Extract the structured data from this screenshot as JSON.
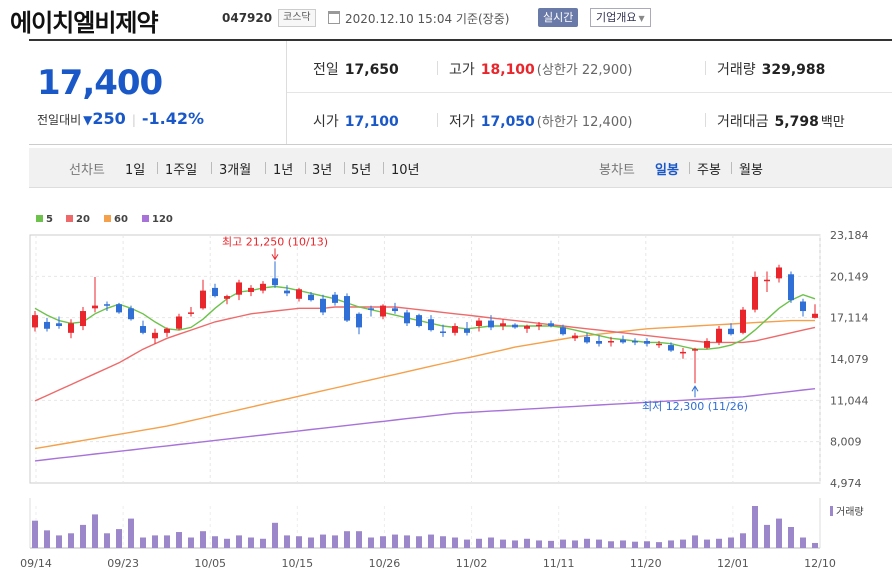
{
  "header": {
    "name": "에이치엘비제약",
    "code": "047920",
    "market": "코스닥",
    "timestamp": "2020.12.10 15:04 기준(장중)",
    "realtime_label": "실시간",
    "company_label": "기업개요"
  },
  "summary": {
    "price": "17,400",
    "change_label": "전일대비",
    "change": "250",
    "change_pct": "-1.42%",
    "stats": {
      "prev_close_label": "전일",
      "prev_close": "17,650",
      "high_label": "고가",
      "high": "18,100",
      "upper_limit": "(상한가 22,900)",
      "volume_label": "거래량",
      "volume": "329,988",
      "open_label": "시가",
      "open": "17,100",
      "low_label": "저가",
      "low": "17,050",
      "lower_limit": "(하한가 12,400)",
      "amount_label": "거래대금",
      "amount": "5,798",
      "amount_unit": "백만"
    }
  },
  "period_bar": {
    "line_label": "선차트",
    "line_periods": [
      "1일",
      "1주일",
      "3개월",
      "1년",
      "3년",
      "5년",
      "10년"
    ],
    "candle_label": "봉차트",
    "candle_periods": [
      "일봉",
      "주봉",
      "월봉"
    ],
    "active_candle": "일봉"
  },
  "colors": {
    "up": "#e8262b",
    "down": "#2f6fd6",
    "ma5": "#6cc24a",
    "ma20": "#ee6a6a",
    "ma60": "#f5a04a",
    "ma120": "#a873d9",
    "volume": "#9b87c9"
  },
  "chart_data": {
    "type": "candlestick",
    "legend": [
      "5",
      "20",
      "60",
      "120"
    ],
    "ylim": [
      4974,
      23184
    ],
    "y_ticks": [
      "23,184",
      "20,149",
      "17,114",
      "14,079",
      "11,044",
      "8,009",
      "4,974"
    ],
    "x_labels": [
      "09/14",
      "09/23",
      "10/05",
      "10/15",
      "10/26",
      "11/02",
      "11/11",
      "11/20",
      "12/01",
      "12/10"
    ],
    "annotations": {
      "high": {
        "text": "최고 21,250 (10/13)",
        "value": 21250
      },
      "low": {
        "text": "최저 12,300 (11/26)",
        "value": 12300
      }
    },
    "volume_label": "거래량",
    "candles": [
      {
        "o": 16400,
        "h": 17600,
        "l": 16100,
        "c": 17300,
        "v": 0.65
      },
      {
        "o": 16800,
        "h": 17100,
        "l": 16100,
        "c": 16300,
        "v": 0.42
      },
      {
        "o": 16700,
        "h": 17200,
        "l": 16300,
        "c": 16500,
        "v": 0.3
      },
      {
        "o": 16000,
        "h": 17000,
        "l": 15600,
        "c": 16700,
        "v": 0.35
      },
      {
        "o": 16500,
        "h": 17900,
        "l": 16200,
        "c": 17600,
        "v": 0.55
      },
      {
        "o": 17800,
        "h": 20100,
        "l": 17500,
        "c": 18000,
        "v": 0.8
      },
      {
        "o": 18100,
        "h": 18300,
        "l": 17600,
        "c": 18000,
        "v": 0.35
      },
      {
        "o": 18100,
        "h": 18200,
        "l": 17400,
        "c": 17500,
        "v": 0.45
      },
      {
        "o": 17800,
        "h": 18000,
        "l": 16900,
        "c": 17000,
        "v": 0.7
      },
      {
        "o": 16500,
        "h": 16900,
        "l": 15900,
        "c": 16000,
        "v": 0.25
      },
      {
        "o": 15600,
        "h": 16300,
        "l": 15200,
        "c": 16000,
        "v": 0.3
      },
      {
        "o": 16000,
        "h": 16400,
        "l": 15700,
        "c": 16300,
        "v": 0.3
      },
      {
        "o": 16300,
        "h": 17400,
        "l": 16200,
        "c": 17200,
        "v": 0.38
      },
      {
        "o": 17400,
        "h": 17900,
        "l": 17200,
        "c": 17500,
        "v": 0.25
      },
      {
        "o": 17800,
        "h": 19900,
        "l": 17700,
        "c": 19100,
        "v": 0.4
      },
      {
        "o": 19300,
        "h": 19600,
        "l": 18600,
        "c": 18700,
        "v": 0.28
      },
      {
        "o": 18500,
        "h": 18800,
        "l": 18100,
        "c": 18700,
        "v": 0.22
      },
      {
        "o": 18800,
        "h": 19900,
        "l": 18400,
        "c": 19700,
        "v": 0.3
      },
      {
        "o": 19000,
        "h": 19500,
        "l": 18700,
        "c": 19300,
        "v": 0.25
      },
      {
        "o": 19100,
        "h": 19800,
        "l": 18900,
        "c": 19600,
        "v": 0.22
      },
      {
        "o": 20000,
        "h": 21250,
        "l": 19300,
        "c": 19500,
        "v": 0.6
      },
      {
        "o": 19100,
        "h": 19500,
        "l": 18700,
        "c": 18900,
        "v": 0.3
      },
      {
        "o": 18500,
        "h": 19300,
        "l": 18300,
        "c": 19200,
        "v": 0.28
      },
      {
        "o": 18800,
        "h": 19000,
        "l": 18300,
        "c": 18400,
        "v": 0.25
      },
      {
        "o": 18500,
        "h": 18800,
        "l": 17300,
        "c": 17500,
        "v": 0.32
      },
      {
        "o": 18800,
        "h": 19000,
        "l": 18000,
        "c": 18200,
        "v": 0.3
      },
      {
        "o": 18700,
        "h": 18900,
        "l": 16800,
        "c": 16900,
        "v": 0.4
      },
      {
        "o": 17400,
        "h": 17500,
        "l": 15900,
        "c": 16400,
        "v": 0.4
      },
      {
        "o": 17800,
        "h": 18000,
        "l": 17200,
        "c": 17700,
        "v": 0.25
      },
      {
        "o": 17200,
        "h": 18100,
        "l": 17000,
        "c": 18000,
        "v": 0.28
      },
      {
        "o": 17800,
        "h": 18200,
        "l": 17400,
        "c": 17600,
        "v": 0.32
      },
      {
        "o": 17500,
        "h": 17700,
        "l": 16500,
        "c": 16700,
        "v": 0.3
      },
      {
        "o": 17300,
        "h": 17400,
        "l": 16400,
        "c": 16500,
        "v": 0.28
      },
      {
        "o": 17000,
        "h": 17300,
        "l": 16100,
        "c": 16200,
        "v": 0.32
      },
      {
        "o": 16100,
        "h": 16600,
        "l": 15700,
        "c": 16000,
        "v": 0.28
      },
      {
        "o": 16000,
        "h": 16700,
        "l": 15800,
        "c": 16500,
        "v": 0.25
      },
      {
        "o": 16300,
        "h": 16800,
        "l": 15800,
        "c": 16000,
        "v": 0.2
      },
      {
        "o": 16500,
        "h": 17100,
        "l": 16100,
        "c": 16900,
        "v": 0.22
      },
      {
        "o": 16900,
        "h": 17300,
        "l": 16200,
        "c": 16400,
        "v": 0.25
      },
      {
        "o": 16500,
        "h": 17000,
        "l": 16200,
        "c": 16700,
        "v": 0.2
      },
      {
        "o": 16600,
        "h": 16700,
        "l": 16300,
        "c": 16400,
        "v": 0.18
      },
      {
        "o": 16300,
        "h": 16600,
        "l": 16000,
        "c": 16500,
        "v": 0.22
      },
      {
        "o": 16500,
        "h": 16800,
        "l": 16200,
        "c": 16600,
        "v": 0.18
      },
      {
        "o": 16700,
        "h": 16900,
        "l": 16400,
        "c": 16500,
        "v": 0.17
      },
      {
        "o": 16400,
        "h": 16600,
        "l": 15800,
        "c": 15900,
        "v": 0.2
      },
      {
        "o": 15600,
        "h": 16000,
        "l": 15400,
        "c": 15800,
        "v": 0.18
      },
      {
        "o": 15700,
        "h": 16000,
        "l": 15200,
        "c": 15300,
        "v": 0.22
      },
      {
        "o": 15400,
        "h": 15800,
        "l": 15000,
        "c": 15200,
        "v": 0.2
      },
      {
        "o": 15300,
        "h": 15700,
        "l": 15000,
        "c": 15400,
        "v": 0.16
      },
      {
        "o": 15500,
        "h": 15800,
        "l": 15200,
        "c": 15300,
        "v": 0.18
      },
      {
        "o": 15400,
        "h": 15600,
        "l": 15100,
        "c": 15300,
        "v": 0.15
      },
      {
        "o": 15400,
        "h": 15600,
        "l": 15000,
        "c": 15200,
        "v": 0.16
      },
      {
        "o": 15200,
        "h": 15400,
        "l": 14900,
        "c": 15200,
        "v": 0.14
      },
      {
        "o": 15100,
        "h": 15300,
        "l": 14600,
        "c": 14700,
        "v": 0.18
      },
      {
        "o": 14500,
        "h": 14900,
        "l": 14100,
        "c": 14600,
        "v": 0.2
      },
      {
        "o": 14700,
        "h": 14900,
        "l": 12300,
        "c": 14800,
        "v": 0.3
      },
      {
        "o": 14900,
        "h": 15600,
        "l": 14800,
        "c": 15400,
        "v": 0.2
      },
      {
        "o": 15300,
        "h": 16500,
        "l": 15100,
        "c": 16300,
        "v": 0.22
      },
      {
        "o": 16300,
        "h": 16700,
        "l": 15800,
        "c": 15900,
        "v": 0.25
      },
      {
        "o": 16000,
        "h": 17900,
        "l": 15900,
        "c": 17700,
        "v": 0.35
      },
      {
        "o": 17700,
        "h": 20500,
        "l": 17500,
        "c": 20100,
        "v": 1.0
      },
      {
        "o": 19800,
        "h": 20500,
        "l": 19000,
        "c": 19900,
        "v": 0.55
      },
      {
        "o": 20000,
        "h": 21000,
        "l": 19700,
        "c": 20800,
        "v": 0.7
      },
      {
        "o": 20300,
        "h": 20500,
        "l": 18200,
        "c": 18400,
        "v": 0.5
      },
      {
        "o": 18300,
        "h": 18500,
        "l": 17200,
        "c": 17600,
        "v": 0.25
      },
      {
        "o": 17100,
        "h": 18100,
        "l": 17050,
        "c": 17400,
        "v": 0.12
      }
    ],
    "ma5": [
      17800,
      17300,
      16900,
      16700,
      16800,
      17400,
      17800,
      18100,
      17800,
      17400,
      16800,
      16300,
      16200,
      16400,
      17000,
      17800,
      18500,
      19000,
      19100,
      19300,
      19400,
      19300,
      19100,
      18900,
      18700,
      18500,
      18200,
      17900,
      17700,
      17500,
      17300,
      17100,
      16900,
      16700,
      16500,
      16400,
      16300,
      16400,
      16500,
      16500,
      16500,
      16500,
      16500,
      16500,
      16400,
      16200,
      16000,
      15800,
      15600,
      15500,
      15400,
      15300,
      15300,
      15200,
      15000,
      14800,
      14800,
      14900,
      15100,
      15500,
      16200,
      17000,
      17800,
      18400,
      18800,
      18500
    ],
    "ma20": [
      11000,
      11400,
      11800,
      12200,
      12600,
      13000,
      13400,
      13800,
      14300,
      14800,
      15200,
      15600,
      15900,
      16200,
      16500,
      16800,
      17000,
      17200,
      17400,
      17500,
      17600,
      17700,
      17800,
      17800,
      17800,
      17900,
      17900,
      17900,
      17900,
      17900,
      17900,
      17800,
      17700,
      17600,
      17500,
      17400,
      17300,
      17200,
      17100,
      17000,
      16900,
      16800,
      16700,
      16600,
      16500,
      16400,
      16300,
      16200,
      16100,
      16000,
      15900,
      15800,
      15700,
      15600,
      15500,
      15400,
      15300,
      15300,
      15300,
      15300,
      15400,
      15600,
      15800,
      16000,
      16200,
      16400
    ],
    "ma60": [
      7500,
      7650,
      7800,
      7950,
      8100,
      8250,
      8400,
      8550,
      8700,
      8850,
      9000,
      9150,
      9350,
      9550,
      9750,
      9950,
      10150,
      10350,
      10550,
      10750,
      10950,
      11150,
      11350,
      11550,
      11750,
      11950,
      12150,
      12350,
      12550,
      12750,
      12950,
      13150,
      13350,
      13550,
      13750,
      13950,
      14150,
      14350,
      14550,
      14750,
      14950,
      15100,
      15250,
      15400,
      15550,
      15700,
      15800,
      15900,
      16000,
      16100,
      16200,
      16300,
      16350,
      16400,
      16450,
      16500,
      16550,
      16600,
      16650,
      16700,
      16750,
      16800,
      16850,
      16900,
      16900,
      16900
    ],
    "ma120": [
      6600,
      6700,
      6800,
      6900,
      7000,
      7100,
      7200,
      7300,
      7400,
      7500,
      7600,
      7700,
      7800,
      7900,
      8000,
      8100,
      8200,
      8300,
      8400,
      8500,
      8600,
      8700,
      8800,
      8900,
      9000,
      9100,
      9200,
      9300,
      9400,
      9500,
      9600,
      9700,
      9800,
      9900,
      10000,
      10100,
      10150,
      10200,
      10250,
      10300,
      10350,
      10400,
      10450,
      10500,
      10550,
      10600,
      10650,
      10700,
      10750,
      10800,
      10850,
      10900,
      10950,
      11000,
      11050,
      11100,
      11150,
      11200,
      11250,
      11300,
      11400,
      11500,
      11600,
      11700,
      11800,
      11900
    ]
  }
}
